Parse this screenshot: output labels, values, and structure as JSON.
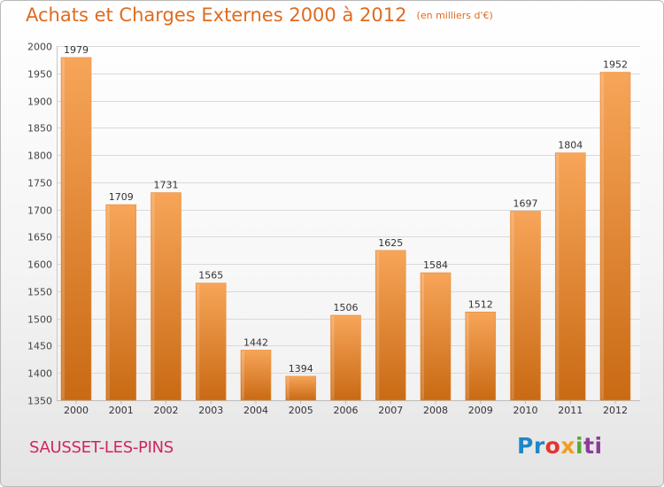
{
  "header": {
    "title": "Achats et Charges Externes 2000 à 2012",
    "unit": "(en milliers d'€)"
  },
  "footer": {
    "city": "SAUSSET-LES-PINS",
    "logo": [
      "Pr",
      "o",
      "x",
      "i",
      "ti"
    ]
  },
  "colors": {
    "title": "#df6b1f",
    "city": "#d0265e",
    "bar_light": "#f7a559",
    "bar_dark": "#c96a14"
  },
  "chart_data": {
    "type": "bar",
    "categories": [
      "2000",
      "2001",
      "2002",
      "2003",
      "2004",
      "2005",
      "2006",
      "2007",
      "2008",
      "2009",
      "2010",
      "2011",
      "2012"
    ],
    "values": [
      1979,
      1709,
      1731,
      1565,
      1442,
      1394,
      1506,
      1625,
      1584,
      1512,
      1697,
      1804,
      1952
    ],
    "ylim": [
      1350,
      2000
    ],
    "yticks": [
      1350,
      1400,
      1450,
      1500,
      1550,
      1600,
      1650,
      1700,
      1750,
      1800,
      1850,
      1900,
      1950,
      2000
    ],
    "grid": true
  }
}
